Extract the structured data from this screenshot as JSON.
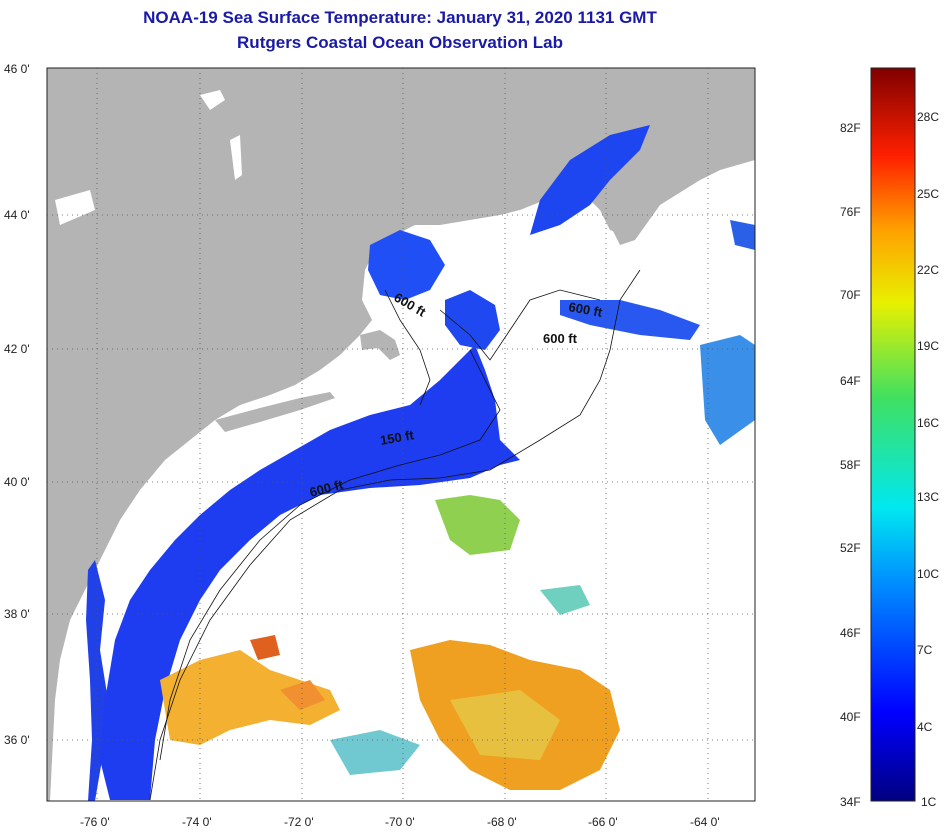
{
  "title": "NOAA-19 Sea Surface Temperature:  January 31, 2020 1131 GMT",
  "subtitle": "Rutgers Coastal Ocean Observation Lab",
  "lat_labels": [
    "46 0'",
    "44 0'",
    "42 0'",
    "40 0'",
    "38 0'",
    "36 0'"
  ],
  "lon_labels": [
    "-76 0'",
    "-74 0'",
    "-72 0'",
    "-70 0'",
    "-68 0'",
    "-66 0'",
    "-64 0'"
  ],
  "contour_labels": [
    "600 ft",
    "600 ft",
    "600 ft",
    "150 ft",
    "600 ft"
  ],
  "colorbar": {
    "fahrenheit": [
      "82F",
      "76F",
      "70F",
      "64F",
      "58F",
      "52F",
      "46F",
      "40F",
      "34F"
    ],
    "celsius": [
      "28C",
      "25C",
      "22C",
      "19C",
      "16C",
      "13C",
      "10C",
      "7C",
      "4C",
      "1C"
    ]
  },
  "colors": {
    "land": "#b4b4b4",
    "cloud": "#ffffff",
    "cold_water": "#1e3cf0",
    "title": "#1a1aa6"
  }
}
